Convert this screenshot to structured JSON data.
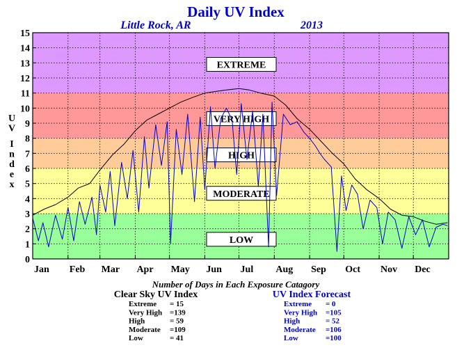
{
  "chart_data": {
    "type": "line",
    "title": "Daily UV Index",
    "subtitle_location": "Little Rock, AR",
    "subtitle_year": "2013",
    "ylabel": "UV Index",
    "ylim": [
      0,
      15
    ],
    "yticks": [
      0,
      1,
      2,
      3,
      4,
      5,
      6,
      7,
      8,
      9,
      10,
      11,
      12,
      13,
      14,
      15
    ],
    "xlim": [
      0,
      365
    ],
    "xticks": [
      {
        "label": "Jan",
        "day": 0
      },
      {
        "label": "Feb",
        "day": 31
      },
      {
        "label": "Mar",
        "day": 59
      },
      {
        "label": "Apr",
        "day": 90
      },
      {
        "label": "May",
        "day": 120
      },
      {
        "label": "Jun",
        "day": 151
      },
      {
        "label": "Jul",
        "day": 181
      },
      {
        "label": "Aug",
        "day": 212
      },
      {
        "label": "Sep",
        "day": 243
      },
      {
        "label": "Oct",
        "day": 273
      },
      {
        "label": "Nov",
        "day": 304
      },
      {
        "label": "Dec",
        "day": 334
      }
    ],
    "grid": true,
    "bands": [
      {
        "label": "LOW",
        "from": 0,
        "to": 3,
        "color": "#99ff99",
        "label_y": 1.3
      },
      {
        "label": "MODERATE",
        "from": 3,
        "to": 6,
        "color": "#ffff99",
        "label_y": 4.35
      },
      {
        "label": "HIGH",
        "from": 6,
        "to": 8,
        "color": "#ffcc99",
        "label_y": 6.9
      },
      {
        "label": "VERY HIGH",
        "from": 8,
        "to": 11,
        "color": "#ff9999",
        "label_y": 9.3
      },
      {
        "label": "EXTREME",
        "from": 11,
        "to": 15,
        "color": "#dd99ff",
        "label_y": 12.9
      }
    ],
    "series": [
      {
        "key": "clear_sky",
        "color": "#000000",
        "x": [
          0,
          10,
          20,
          31,
          40,
          50,
          59,
          70,
          80,
          90,
          100,
          110,
          120,
          130,
          140,
          151,
          160,
          170,
          181,
          190,
          200,
          212,
          222,
          232,
          243,
          253,
          263,
          273,
          283,
          293,
          304,
          314,
          324,
          334,
          344,
          354,
          364
        ],
        "y": [
          2.9,
          3.3,
          3.6,
          4.1,
          4.7,
          5.0,
          5.9,
          6.9,
          7.6,
          8.5,
          9.2,
          9.6,
          10.0,
          10.4,
          10.7,
          11.0,
          11.1,
          11.2,
          11.3,
          11.2,
          11.0,
          10.8,
          10.2,
          9.3,
          8.6,
          7.8,
          7.0,
          6.3,
          5.3,
          4.6,
          4.0,
          3.3,
          2.9,
          2.8,
          2.5,
          2.3,
          2.4
        ]
      },
      {
        "key": "forecast",
        "color": "#0000cc",
        "x": [
          0,
          5,
          9,
          14,
          20,
          26,
          31,
          36,
          41,
          46,
          52,
          56,
          59,
          64,
          68,
          72,
          78,
          83,
          88,
          93,
          98,
          102,
          108,
          113,
          118,
          121,
          126,
          131,
          136,
          142,
          147,
          151,
          156,
          160,
          165,
          170,
          175,
          179,
          183,
          188,
          193,
          198,
          202,
          207,
          210,
          214,
          220,
          226,
          232,
          238,
          243,
          248,
          252,
          256,
          262,
          267,
          271,
          275,
          280,
          285,
          290,
          296,
          302,
          307,
          312,
          318,
          324,
          330,
          336,
          342,
          348,
          354,
          360,
          364
        ],
        "y": [
          2.7,
          1.2,
          2.4,
          0.8,
          2.9,
          1.3,
          3.4,
          1.2,
          3.8,
          2.3,
          4.1,
          1.6,
          4.9,
          3.1,
          5.8,
          2.2,
          6.4,
          4.0,
          7.2,
          3.1,
          8.1,
          4.7,
          8.9,
          6.2,
          9.1,
          1.0,
          8.6,
          5.6,
          9.6,
          3.8,
          9.4,
          4.6,
          10.1,
          6.0,
          9.3,
          10.0,
          9.2,
          5.6,
          10.3,
          6.6,
          9.8,
          4.8,
          9.6,
          0.8,
          10.4,
          4.2,
          9.6,
          8.9,
          9.1,
          8.4,
          8.0,
          7.5,
          7.0,
          6.6,
          6.1,
          0.5,
          5.5,
          3.2,
          4.9,
          4.3,
          2.0,
          3.9,
          3.4,
          1.0,
          3.1,
          2.6,
          0.7,
          2.8,
          1.6,
          2.6,
          0.8,
          2.1,
          2.3,
          2.2
        ]
      }
    ],
    "footer_title": "Number of Days in Each Exposure Catagory",
    "tables": [
      {
        "heading": "Clear Sky UV Index",
        "color": "#000000",
        "rows": [
          {
            "label": "Extreme",
            "value": "= 15"
          },
          {
            "label": "Very High",
            "value": "=139"
          },
          {
            "label": "High",
            "value": "= 59"
          },
          {
            "label": "Moderate",
            "value": "=109"
          },
          {
            "label": "Low",
            "value": "= 41"
          }
        ]
      },
      {
        "heading": "UV Index Forecast",
        "color": "#0000cc",
        "rows": [
          {
            "label": "Extreme",
            "value": "= 0"
          },
          {
            "label": "Very High",
            "value": "=105"
          },
          {
            "label": "High",
            "value": "= 52"
          },
          {
            "label": "Moderate",
            "value": "=106"
          },
          {
            "label": "Low",
            "value": "=100"
          }
        ]
      }
    ]
  }
}
